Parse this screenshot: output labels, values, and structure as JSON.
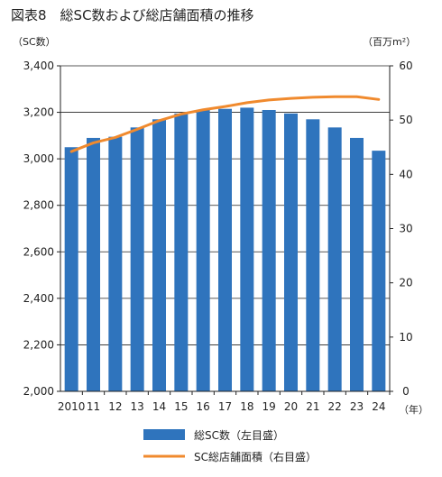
{
  "figure": {
    "title": "図表8　総SC数および総店舗面積の推移",
    "left_axis_unit": "（SC数）",
    "right_axis_unit": "（百万m²）",
    "x_unit": "（年）"
  },
  "colors": {
    "bar": "#2f74bd",
    "line": "#f08a2e",
    "axis": "#222222",
    "grid": "#222222"
  },
  "chart_data": {
    "type": "bar",
    "categories": [
      "2010",
      "11",
      "12",
      "13",
      "14",
      "15",
      "16",
      "17",
      "18",
      "19",
      "20",
      "21",
      "22",
      "23",
      "24"
    ],
    "y_left": {
      "min": 2000,
      "max": 3400,
      "ticks": [
        2000,
        2200,
        2400,
        2600,
        2800,
        3000,
        3200,
        3400
      ],
      "tick_labels": [
        "2,000",
        "2,200",
        "2,400",
        "2,600",
        "2,800",
        "3,000",
        "3,200",
        "3,400"
      ]
    },
    "y_right": {
      "min": 0,
      "max": 60,
      "ticks": [
        0,
        10,
        20,
        30,
        40,
        50,
        60
      ]
    },
    "grid": "horizontal",
    "legend_position": "bottom",
    "series": [
      {
        "name": "総SC数（左目盛）",
        "type": "bar",
        "axis": "left",
        "values": [
          3050,
          3090,
          3095,
          3135,
          3170,
          3195,
          3210,
          3215,
          3220,
          3210,
          3195,
          3170,
          3135,
          3090,
          3035
        ]
      },
      {
        "name": "SC総店舗面積（右目盛）",
        "type": "line",
        "axis": "right",
        "values": [
          44.2,
          45.8,
          46.8,
          48.3,
          49.9,
          51.1,
          51.9,
          52.5,
          53.2,
          53.7,
          54.0,
          54.2,
          54.3,
          54.3,
          53.8
        ]
      }
    ]
  }
}
